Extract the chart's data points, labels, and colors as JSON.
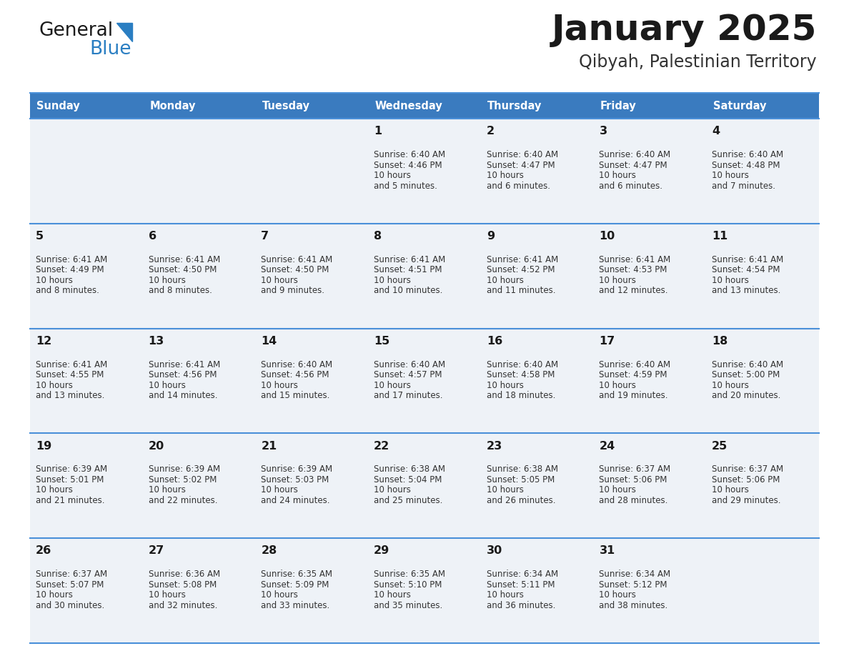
{
  "title": "January 2025",
  "subtitle": "Qibyah, Palestinian Territory",
  "days_of_week": [
    "Sunday",
    "Monday",
    "Tuesday",
    "Wednesday",
    "Thursday",
    "Friday",
    "Saturday"
  ],
  "header_bg": "#3a7bbf",
  "header_text": "#ffffff",
  "row_bg": "#eef2f7",
  "cell_border_color": "#4a90d9",
  "title_color": "#1a1a1a",
  "subtitle_color": "#333333",
  "day_number_color": "#1a1a1a",
  "text_color": "#333333",
  "logo_general_color": "#1a1a1a",
  "logo_blue_color": "#2a7ec2",
  "calendar_data": [
    [
      null,
      null,
      null,
      {
        "day": "1",
        "sunrise": "6:40 AM",
        "sunset": "4:46 PM",
        "daylight": "10 hours",
        "daylight2": "and 5 minutes."
      },
      {
        "day": "2",
        "sunrise": "6:40 AM",
        "sunset": "4:47 PM",
        "daylight": "10 hours",
        "daylight2": "and 6 minutes."
      },
      {
        "day": "3",
        "sunrise": "6:40 AM",
        "sunset": "4:47 PM",
        "daylight": "10 hours",
        "daylight2": "and 6 minutes."
      },
      {
        "day": "4",
        "sunrise": "6:40 AM",
        "sunset": "4:48 PM",
        "daylight": "10 hours",
        "daylight2": "and 7 minutes."
      }
    ],
    [
      {
        "day": "5",
        "sunrise": "6:41 AM",
        "sunset": "4:49 PM",
        "daylight": "10 hours",
        "daylight2": "and 8 minutes."
      },
      {
        "day": "6",
        "sunrise": "6:41 AM",
        "sunset": "4:50 PM",
        "daylight": "10 hours",
        "daylight2": "and 8 minutes."
      },
      {
        "day": "7",
        "sunrise": "6:41 AM",
        "sunset": "4:50 PM",
        "daylight": "10 hours",
        "daylight2": "and 9 minutes."
      },
      {
        "day": "8",
        "sunrise": "6:41 AM",
        "sunset": "4:51 PM",
        "daylight": "10 hours",
        "daylight2": "and 10 minutes."
      },
      {
        "day": "9",
        "sunrise": "6:41 AM",
        "sunset": "4:52 PM",
        "daylight": "10 hours",
        "daylight2": "and 11 minutes."
      },
      {
        "day": "10",
        "sunrise": "6:41 AM",
        "sunset": "4:53 PM",
        "daylight": "10 hours",
        "daylight2": "and 12 minutes."
      },
      {
        "day": "11",
        "sunrise": "6:41 AM",
        "sunset": "4:54 PM",
        "daylight": "10 hours",
        "daylight2": "and 13 minutes."
      }
    ],
    [
      {
        "day": "12",
        "sunrise": "6:41 AM",
        "sunset": "4:55 PM",
        "daylight": "10 hours",
        "daylight2": "and 13 minutes."
      },
      {
        "day": "13",
        "sunrise": "6:41 AM",
        "sunset": "4:56 PM",
        "daylight": "10 hours",
        "daylight2": "and 14 minutes."
      },
      {
        "day": "14",
        "sunrise": "6:40 AM",
        "sunset": "4:56 PM",
        "daylight": "10 hours",
        "daylight2": "and 15 minutes."
      },
      {
        "day": "15",
        "sunrise": "6:40 AM",
        "sunset": "4:57 PM",
        "daylight": "10 hours",
        "daylight2": "and 17 minutes."
      },
      {
        "day": "16",
        "sunrise": "6:40 AM",
        "sunset": "4:58 PM",
        "daylight": "10 hours",
        "daylight2": "and 18 minutes."
      },
      {
        "day": "17",
        "sunrise": "6:40 AM",
        "sunset": "4:59 PM",
        "daylight": "10 hours",
        "daylight2": "and 19 minutes."
      },
      {
        "day": "18",
        "sunrise": "6:40 AM",
        "sunset": "5:00 PM",
        "daylight": "10 hours",
        "daylight2": "and 20 minutes."
      }
    ],
    [
      {
        "day": "19",
        "sunrise": "6:39 AM",
        "sunset": "5:01 PM",
        "daylight": "10 hours",
        "daylight2": "and 21 minutes."
      },
      {
        "day": "20",
        "sunrise": "6:39 AM",
        "sunset": "5:02 PM",
        "daylight": "10 hours",
        "daylight2": "and 22 minutes."
      },
      {
        "day": "21",
        "sunrise": "6:39 AM",
        "sunset": "5:03 PM",
        "daylight": "10 hours",
        "daylight2": "and 24 minutes."
      },
      {
        "day": "22",
        "sunrise": "6:38 AM",
        "sunset": "5:04 PM",
        "daylight": "10 hours",
        "daylight2": "and 25 minutes."
      },
      {
        "day": "23",
        "sunrise": "6:38 AM",
        "sunset": "5:05 PM",
        "daylight": "10 hours",
        "daylight2": "and 26 minutes."
      },
      {
        "day": "24",
        "sunrise": "6:37 AM",
        "sunset": "5:06 PM",
        "daylight": "10 hours",
        "daylight2": "and 28 minutes."
      },
      {
        "day": "25",
        "sunrise": "6:37 AM",
        "sunset": "5:06 PM",
        "daylight": "10 hours",
        "daylight2": "and 29 minutes."
      }
    ],
    [
      {
        "day": "26",
        "sunrise": "6:37 AM",
        "sunset": "5:07 PM",
        "daylight": "10 hours",
        "daylight2": "and 30 minutes."
      },
      {
        "day": "27",
        "sunrise": "6:36 AM",
        "sunset": "5:08 PM",
        "daylight": "10 hours",
        "daylight2": "and 32 minutes."
      },
      {
        "day": "28",
        "sunrise": "6:35 AM",
        "sunset": "5:09 PM",
        "daylight": "10 hours",
        "daylight2": "and 33 minutes."
      },
      {
        "day": "29",
        "sunrise": "6:35 AM",
        "sunset": "5:10 PM",
        "daylight": "10 hours",
        "daylight2": "and 35 minutes."
      },
      {
        "day": "30",
        "sunrise": "6:34 AM",
        "sunset": "5:11 PM",
        "daylight": "10 hours",
        "daylight2": "and 36 minutes."
      },
      {
        "day": "31",
        "sunrise": "6:34 AM",
        "sunset": "5:12 PM",
        "daylight": "10 hours",
        "daylight2": "and 38 minutes."
      },
      null
    ]
  ],
  "figsize": [
    11.88,
    9.18
  ],
  "dpi": 100
}
